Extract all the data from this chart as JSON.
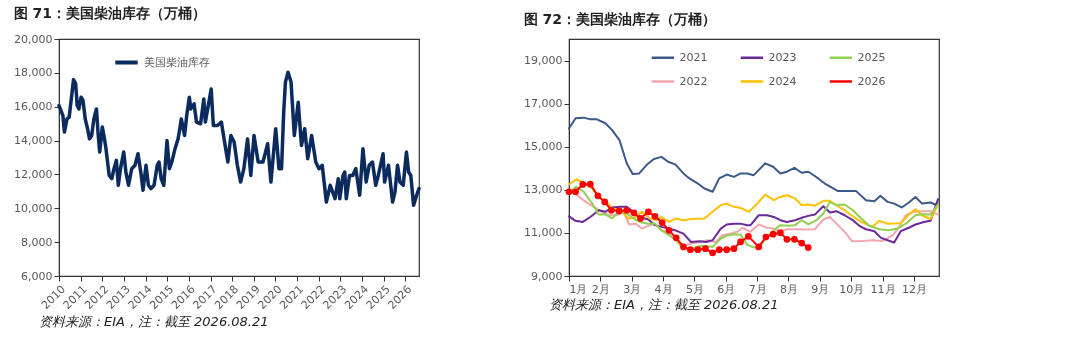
{
  "chart_data": [
    {
      "type": "line",
      "title": "图 71：美国柴油库存（万桶）",
      "annotations": [
        "资料来源：EIA，注：截至 2026.08.21"
      ],
      "xlim": [
        2010,
        2026.63
      ],
      "xticks": [
        2010,
        2011,
        2012,
        2013,
        2014,
        2015,
        2016,
        2017,
        2018,
        2019,
        2020,
        2021,
        2022,
        2023,
        2024,
        2025,
        2026
      ],
      "ylim": [
        6000,
        20000
      ],
      "yticks": [
        {
          "value": 6000,
          "label": "6,000"
        },
        {
          "value": 8000,
          "label": "8,000"
        },
        {
          "value": 10000,
          "label": "10,000"
        },
        {
          "value": 12000,
          "label": "12,000"
        },
        {
          "value": 14000,
          "label": "14,000"
        },
        {
          "value": 16000,
          "label": "16,000"
        },
        {
          "value": 18000,
          "label": "18,000"
        },
        {
          "value": 20000,
          "label": "20,000"
        }
      ],
      "legend": "top left",
      "series": [
        {
          "name": "美国柴油库存",
          "color": "#0b2a5e",
          "x": [
            2010.0,
            2010.18,
            2010.25,
            2010.37,
            2010.47,
            2010.62,
            2010.67,
            2010.77,
            2010.84,
            2010.92,
            2011.02,
            2011.11,
            2011.21,
            2011.32,
            2011.41,
            2011.51,
            2011.61,
            2011.73,
            2011.8,
            2011.88,
            2012.0,
            2012.1,
            2012.17,
            2012.32,
            2012.44,
            2012.54,
            2012.65,
            2012.74,
            2012.84,
            2012.99,
            2013.09,
            2013.21,
            2013.36,
            2013.51,
            2013.65,
            2013.8,
            2013.88,
            2014.02,
            2014.13,
            2014.25,
            2014.39,
            2014.54,
            2014.62,
            2014.72,
            2014.84,
            2014.99,
            2015.1,
            2015.21,
            2015.36,
            2015.5,
            2015.58,
            2015.65,
            2015.8,
            2015.9,
            2016.02,
            2016.09,
            2016.24,
            2016.35,
            2016.54,
            2016.69,
            2016.76,
            2016.91,
            2017.03,
            2017.13,
            2017.32,
            2017.5,
            2017.65,
            2017.8,
            2017.94,
            2018.09,
            2018.24,
            2018.39,
            2018.54,
            2018.71,
            2018.86,
            2019.01,
            2019.2,
            2019.42,
            2019.64,
            2019.79,
            2020.01,
            2020.16,
            2020.28,
            2020.38,
            2020.46,
            2020.58,
            2020.72,
            2020.87,
            2021.05,
            2021.2,
            2021.35,
            2021.49,
            2021.67,
            2021.86,
            2022.01,
            2022.16,
            2022.35,
            2022.53,
            2022.75,
            2022.9,
            2022.97,
            2023.12,
            2023.2,
            2023.27,
            2023.42,
            2023.57,
            2023.71,
            2023.89,
            2024.04,
            2024.19,
            2024.33,
            2024.48,
            2024.63,
            2024.75,
            2024.97,
            2025.04,
            2025.22,
            2025.41,
            2025.52,
            2025.64,
            2025.75,
            2025.9,
            2026.05,
            2026.15,
            2026.25,
            2026.38,
            2026.52,
            2026.63
          ],
          "values": [
            16070,
            15480,
            14500,
            15280,
            15380,
            17050,
            17600,
            17350,
            16070,
            15870,
            16560,
            16370,
            15280,
            14700,
            14100,
            14300,
            15280,
            15870,
            14500,
            13320,
            14800,
            14100,
            13520,
            11940,
            11750,
            12340,
            12830,
            11360,
            12340,
            13320,
            12140,
            11360,
            12340,
            12540,
            13220,
            11940,
            11060,
            12540,
            11360,
            11160,
            11360,
            12540,
            12730,
            11750,
            11360,
            14000,
            12340,
            12730,
            13520,
            14100,
            14700,
            15280,
            14300,
            15480,
            16560,
            15870,
            16170,
            15090,
            14990,
            16460,
            15090,
            16170,
            17050,
            14890,
            14890,
            15090,
            13910,
            12730,
            14300,
            13910,
            12540,
            11550,
            12340,
            14100,
            11940,
            14300,
            12730,
            12730,
            13810,
            11550,
            14700,
            12340,
            12340,
            15680,
            17450,
            18040,
            17450,
            14300,
            16270,
            13710,
            14700,
            12930,
            14300,
            12730,
            12340,
            12540,
            10370,
            11360,
            10570,
            11750,
            10570,
            11940,
            12140,
            10570,
            11940,
            11940,
            12340,
            10770,
            13520,
            11550,
            12540,
            12730,
            11360,
            11940,
            13220,
            11550,
            12540,
            10370,
            10960,
            12540,
            11550,
            11360,
            13320,
            12140,
            11940,
            10180,
            10770,
            11160
          ]
        }
      ]
    },
    {
      "type": "line",
      "title": "图 72：美国柴油库存（万桶）",
      "annotations": [
        "资料来源：EIA，注：截至 2026.08.21"
      ],
      "xlim": [
        1,
        12.8
      ],
      "xticks": [
        {
          "value": 1,
          "label": "1月"
        },
        {
          "value": 2,
          "label": "2月"
        },
        {
          "value": 3,
          "label": "3月"
        },
        {
          "value": 4,
          "label": "4月"
        },
        {
          "value": 5,
          "label": "5月"
        },
        {
          "value": 6,
          "label": "6月"
        },
        {
          "value": 7,
          "label": "7月"
        },
        {
          "value": 8,
          "label": "8月"
        },
        {
          "value": 9,
          "label": "9月"
        },
        {
          "value": 10,
          "label": "10月"
        },
        {
          "value": 11,
          "label": "11月"
        },
        {
          "value": 12,
          "label": "12月"
        }
      ],
      "ylim": [
        9000,
        20000
      ],
      "yticks": [
        {
          "value": 9000,
          "label": "9,000"
        },
        {
          "value": 11000,
          "label": "11,000"
        },
        {
          "value": 13000,
          "label": "13,000"
        },
        {
          "value": 15000,
          "label": "15,000"
        },
        {
          "value": 17000,
          "label": "17,000"
        },
        {
          "value": 19000,
          "label": "19,000"
        }
      ],
      "legend": "top",
      "series": [
        {
          "name": "2021",
          "color": "#3b5a8a",
          "x": [
            1.0,
            1.21,
            1.47,
            1.68,
            1.89,
            2.16,
            2.37,
            2.61,
            2.84,
            3.03,
            3.24,
            3.47,
            3.71,
            3.95,
            4.16,
            4.39,
            4.65,
            4.84,
            5.11,
            5.32,
            5.58,
            5.79,
            6.03,
            6.26,
            6.47,
            6.68,
            6.89,
            7.26,
            7.51,
            7.74,
            7.95,
            8.19,
            8.42,
            8.63,
            8.84,
            9.16,
            9.37,
            9.58,
            9.84,
            10.16,
            10.47,
            10.74,
            10.93,
            11.16,
            11.37,
            11.61,
            11.84,
            12.05,
            12.26,
            12.53,
            12.68,
            12.77
          ],
          "values": [
            15850,
            16320,
            16350,
            16270,
            16270,
            16090,
            15780,
            15310,
            14230,
            13730,
            13760,
            14150,
            14430,
            14530,
            14300,
            14180,
            13760,
            13530,
            13290,
            13060,
            12910,
            13530,
            13710,
            13600,
            13760,
            13760,
            13680,
            14230,
            14070,
            13760,
            13840,
            14020,
            13790,
            13840,
            13640,
            13290,
            13110,
            12940,
            12950,
            12940,
            12520,
            12470,
            12720,
            12440,
            12360,
            12180,
            12410,
            12670,
            12360,
            12410,
            12320,
            12360
          ]
        },
        {
          "name": "2022",
          "color": "#f4a6b0",
          "x": [
            1.0,
            1.26,
            1.53,
            1.79,
            2.05,
            2.26,
            2.53,
            2.74,
            2.92,
            3.13,
            3.32,
            3.53,
            3.74,
            3.95,
            4.16,
            4.42,
            4.68,
            4.89,
            5.16,
            5.42,
            5.68,
            5.89,
            6.16,
            6.37,
            6.53,
            6.79,
            7.05,
            7.32,
            7.53,
            7.74,
            7.95,
            8.21,
            8.47,
            8.84,
            9.11,
            9.32,
            9.53,
            9.79,
            10.03,
            10.37,
            10.68,
            11.0,
            11.32,
            11.53,
            11.74,
            12.0,
            12.26,
            12.53,
            12.77
          ],
          "values": [
            12980,
            12750,
            12440,
            12210,
            11980,
            11820,
            11820,
            11980,
            11390,
            11430,
            11200,
            11330,
            11430,
            11120,
            11020,
            10660,
            10430,
            10500,
            10580,
            10660,
            10580,
            10890,
            10970,
            11050,
            11240,
            11050,
            11390,
            11240,
            11200,
            11050,
            11170,
            11170,
            11160,
            11170,
            11620,
            11740,
            11430,
            11050,
            10610,
            10630,
            10660,
            10630,
            10890,
            11280,
            11820,
            11980,
            12010,
            12010,
            11850
          ]
        },
        {
          "name": "2023",
          "color": "#6a2a9a",
          "x": [
            1.0,
            1.21,
            1.44,
            1.68,
            1.95,
            2.16,
            2.37,
            2.63,
            2.84,
            3.05,
            3.26,
            3.53,
            3.74,
            3.95,
            4.16,
            4.39,
            4.65,
            4.89,
            5.16,
            5.37,
            5.58,
            5.84,
            6.03,
            6.26,
            6.47,
            6.68,
            6.79,
            7.05,
            7.32,
            7.53,
            7.74,
            7.95,
            8.21,
            8.42,
            8.63,
            8.84,
            9.11,
            9.32,
            9.53,
            9.79,
            10.05,
            10.26,
            10.47,
            10.74,
            10.95,
            11.16,
            11.37,
            11.58,
            11.84,
            12.05,
            12.32,
            12.53,
            12.77
          ],
          "values": [
            11770,
            11560,
            11510,
            11740,
            12050,
            11980,
            12180,
            12210,
            12210,
            11980,
            11740,
            11620,
            11360,
            11280,
            11200,
            11120,
            10970,
            10580,
            10610,
            10580,
            10660,
            11200,
            11390,
            11430,
            11430,
            11360,
            11360,
            11820,
            11820,
            11740,
            11590,
            11510,
            11590,
            11700,
            11790,
            11850,
            12240,
            11950,
            12010,
            11820,
            11590,
            11330,
            11170,
            11080,
            10770,
            10660,
            10550,
            11080,
            11240,
            11390,
            11510,
            11560,
            12570
          ]
        },
        {
          "name": "2024",
          "color": "#ffc000",
          "x": [
            1.0,
            1.23,
            1.47,
            1.74,
            2.0,
            2.21,
            2.37,
            2.63,
            2.89,
            3.11,
            3.32,
            3.58,
            3.79,
            3.95,
            4.19,
            4.42,
            4.65,
            4.89,
            5.32,
            5.58,
            5.84,
            6.03,
            6.26,
            6.47,
            6.74,
            7.0,
            7.26,
            7.53,
            7.74,
            7.95,
            8.21,
            8.42,
            8.63,
            8.84,
            9.11,
            9.32,
            9.53,
            9.79,
            10.05,
            10.32,
            10.68,
            10.89,
            11.16,
            11.58,
            11.84,
            12.05,
            12.26,
            12.53,
            12.77
          ],
          "values": [
            13250,
            13480,
            13340,
            13060,
            12600,
            12440,
            12130,
            12090,
            11670,
            11710,
            11980,
            11670,
            11590,
            11740,
            11510,
            11670,
            11590,
            11640,
            11670,
            11980,
            12290,
            12360,
            12210,
            12160,
            11980,
            12360,
            12780,
            12520,
            12670,
            12750,
            12600,
            12290,
            12320,
            12260,
            12490,
            12490,
            12290,
            12050,
            11770,
            11510,
            11280,
            11560,
            11430,
            11450,
            11850,
            12100,
            11820,
            11640,
            12320
          ]
        },
        {
          "name": "2025",
          "color": "#92d050",
          "x": [
            1.0,
            1.23,
            1.47,
            1.74,
            1.95,
            2.16,
            2.37,
            2.58,
            2.84,
            3.11,
            3.32,
            3.53,
            3.74,
            3.95,
            4.19,
            4.42,
            4.63,
            4.89,
            5.16,
            5.37,
            5.58,
            5.84,
            6.05,
            6.29,
            6.47,
            6.68,
            6.84,
            7.05,
            7.32,
            7.53,
            7.74,
            8.0,
            8.21,
            8.42,
            8.63,
            8.89,
            9.11,
            9.32,
            9.53,
            9.79,
            10.05,
            10.32,
            10.58,
            10.89,
            11.21,
            11.47,
            11.74,
            12.05,
            12.26,
            12.53,
            12.77
          ],
          "values": [
            12880,
            13140,
            12910,
            12360,
            11850,
            11870,
            11670,
            11980,
            11900,
            11620,
            11480,
            11430,
            11430,
            11120,
            10890,
            10660,
            10300,
            10270,
            10380,
            10390,
            10350,
            10740,
            10890,
            10940,
            10920,
            10460,
            10350,
            10300,
            10810,
            11120,
            11360,
            11330,
            11360,
            11590,
            11400,
            11590,
            11900,
            12440,
            12290,
            12320,
            12050,
            11670,
            11330,
            11170,
            11120,
            11200,
            11430,
            11820,
            11870,
            11850,
            12320
          ]
        },
        {
          "name": "2026",
          "color": "#ff0000",
          "marker": "circle",
          "x": [
            1.0,
            1.21,
            1.44,
            1.68,
            1.92,
            2.14,
            2.35,
            2.6,
            2.84,
            3.07,
            3.28,
            3.53,
            3.74,
            3.97,
            4.19,
            4.42,
            4.65,
            4.87,
            5.11,
            5.35,
            5.58,
            5.79,
            6.03,
            6.26,
            6.47,
            6.72,
            7.05,
            7.28,
            7.51,
            7.74,
            7.95,
            8.19,
            8.42,
            8.63
          ],
          "values": [
            12910,
            12910,
            13250,
            13260,
            12720,
            12440,
            12050,
            12020,
            12050,
            11930,
            11670,
            11980,
            11770,
            11480,
            11120,
            10770,
            10350,
            10220,
            10220,
            10270,
            10070,
            10220,
            10220,
            10270,
            10580,
            10840,
            10350,
            10810,
            10940,
            11010,
            10700,
            10700,
            10530,
            10320
          ]
        }
      ]
    }
  ]
}
